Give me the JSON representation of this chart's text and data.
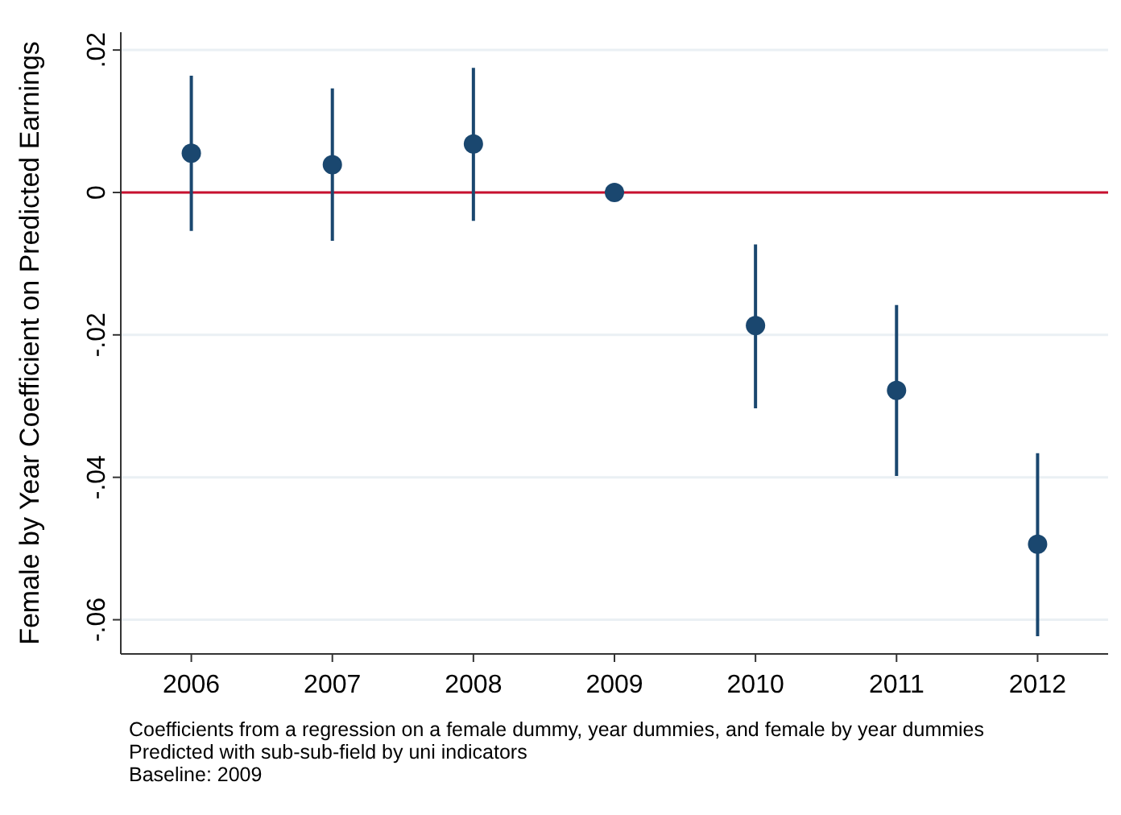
{
  "chart_data": {
    "type": "scatter",
    "ylabel": "Female by Year Coefficient on Predicted Earnings",
    "x": [
      2006,
      2007,
      2008,
      2009,
      2010,
      2011,
      2012
    ],
    "series": [
      {
        "color": "#1a476f",
        "values": [
          0.0055,
          0.0039,
          0.0068,
          0,
          -0.0187,
          -0.0278,
          -0.0494
        ],
        "errors": [
          [
            -0.0054,
            0.0164
          ],
          [
            -0.0068,
            0.0146
          ],
          [
            -0.004,
            0.0175
          ],
          null,
          [
            -0.0303,
            -0.0073
          ],
          [
            -0.0398,
            -0.0158
          ],
          [
            -0.0623,
            -0.0366
          ]
        ]
      }
    ],
    "xlim": [
      2005.5,
      2012.5
    ],
    "xticks": [
      2006,
      2007,
      2008,
      2009,
      2010,
      2011,
      2012
    ],
    "ylim": [
      -0.0648,
      0.0225
    ],
    "yticks": [
      {
        "value": -0.06,
        "label": "-.06"
      },
      {
        "value": -0.04,
        "label": "-.04"
      },
      {
        "value": -0.02,
        "label": "-.02"
      },
      0,
      {
        "value": 0.02,
        "label": ".02"
      }
    ],
    "grid": "y",
    "marker": "circle",
    "ref_lines": [
      {
        "axis": "y",
        "value": 0,
        "color": "#c8102e"
      }
    ],
    "annotations": [
      "Coefficients from a regression on a female dummy, year dummies, and female by year dummies",
      "Predicted with sub-sub-field by uni indicators",
      "Baseline: 2009"
    ]
  }
}
